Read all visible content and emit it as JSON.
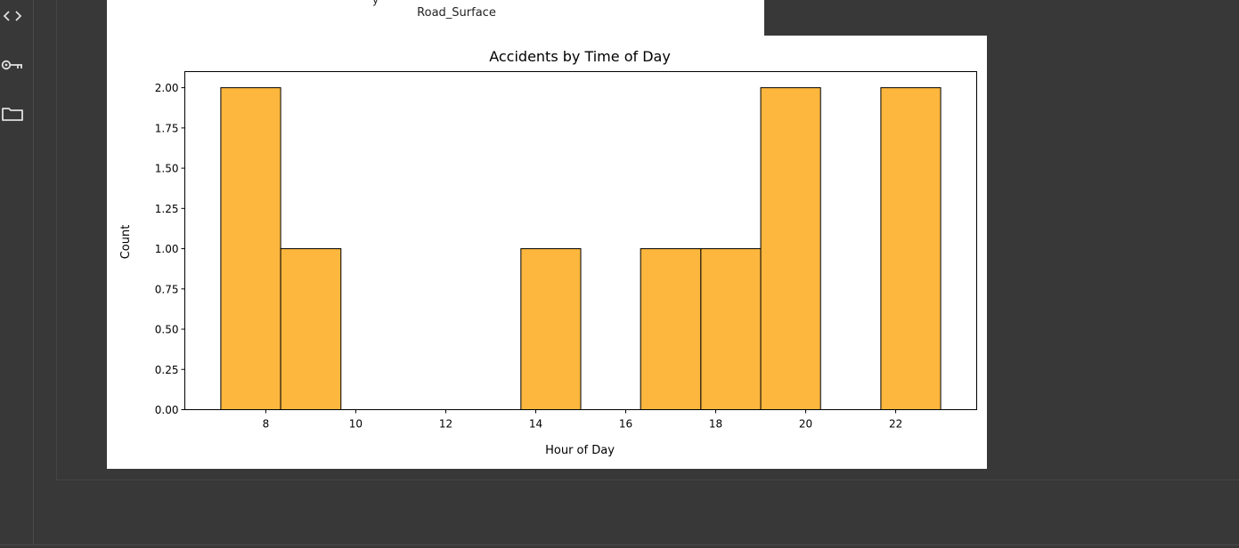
{
  "sidebar": {
    "icons": [
      {
        "name": "code-icon"
      },
      {
        "name": "key-icon"
      },
      {
        "name": "folder-icon"
      }
    ]
  },
  "previous_output": {
    "xlabel": "Road_Surface",
    "cut_text": "y"
  },
  "chart_data": {
    "type": "bar",
    "title": "Accidents by Time of Day",
    "xlabel": "Hour of Day",
    "ylabel": "Count",
    "xlim": [
      6.2,
      23.8
    ],
    "ylim": [
      0,
      2.1
    ],
    "xticks": [
      "8",
      "10",
      "12",
      "14",
      "16",
      "18",
      "20",
      "22"
    ],
    "yticks": [
      "0.00",
      "0.25",
      "0.50",
      "0.75",
      "1.00",
      "1.25",
      "1.50",
      "1.75",
      "2.00"
    ],
    "bins": [
      {
        "start": 7.0,
        "end": 8.33,
        "count": 2
      },
      {
        "start": 8.33,
        "end": 9.67,
        "count": 1
      },
      {
        "start": 9.67,
        "end": 11.0,
        "count": 0
      },
      {
        "start": 11.0,
        "end": 12.33,
        "count": 0
      },
      {
        "start": 12.33,
        "end": 13.67,
        "count": 0
      },
      {
        "start": 13.67,
        "end": 15.0,
        "count": 1
      },
      {
        "start": 15.0,
        "end": 16.33,
        "count": 0
      },
      {
        "start": 16.33,
        "end": 17.67,
        "count": 1
      },
      {
        "start": 17.67,
        "end": 19.0,
        "count": 1
      },
      {
        "start": 19.0,
        "end": 20.33,
        "count": 2
      },
      {
        "start": 20.33,
        "end": 21.67,
        "count": 0
      },
      {
        "start": 21.67,
        "end": 23.0,
        "count": 2
      }
    ],
    "bar_color": "#FDB73E",
    "edge_color": "#000000",
    "grid": false,
    "legend": "none"
  }
}
